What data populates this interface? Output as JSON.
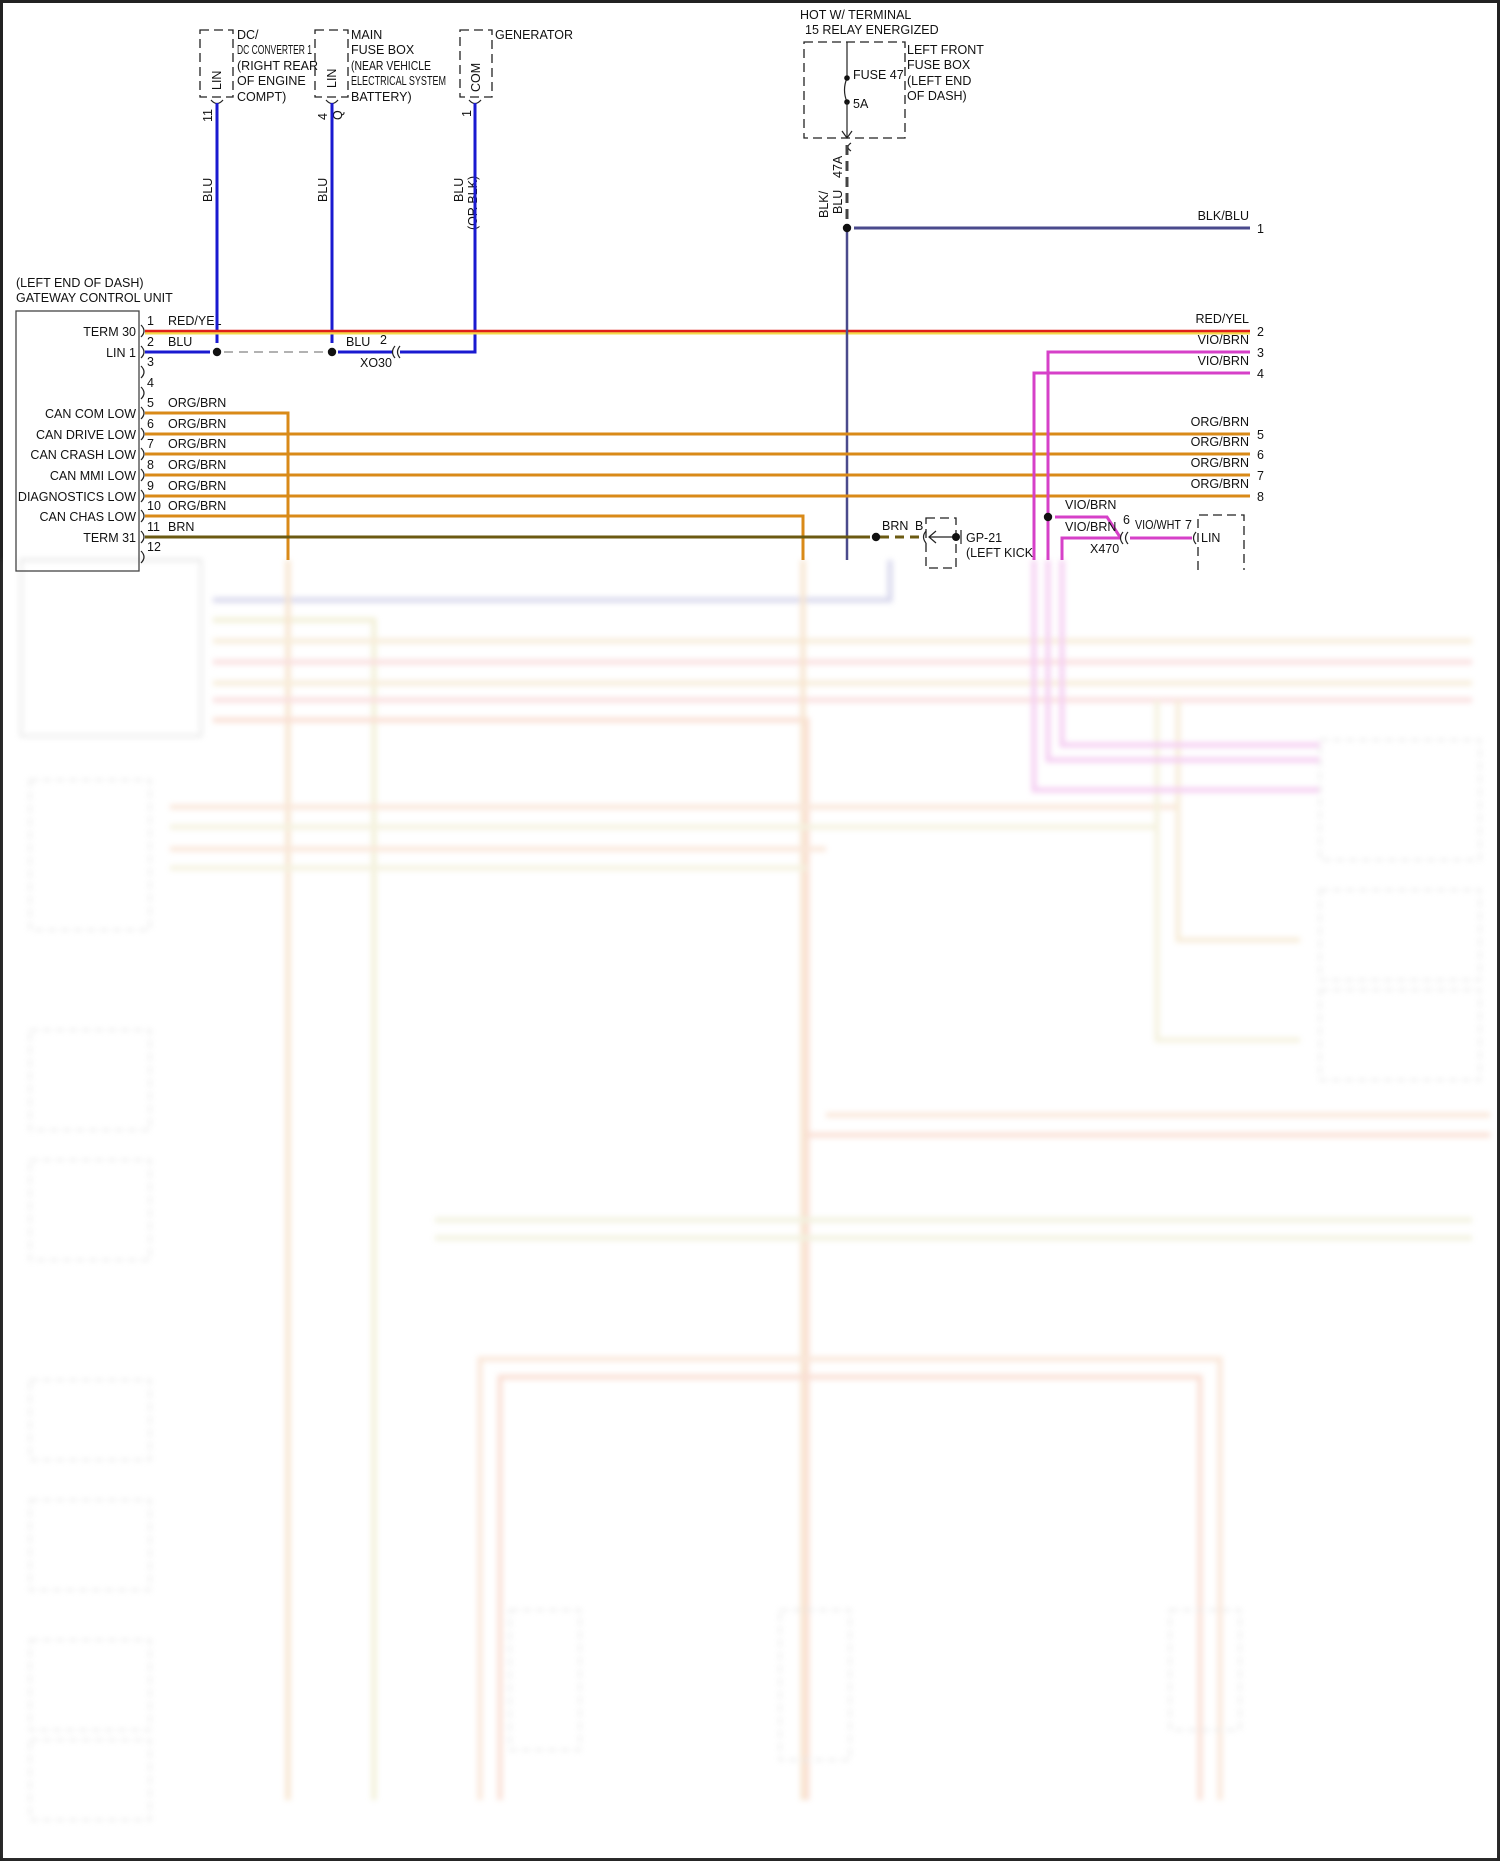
{
  "colors": {
    "red_yel": "#e0201a",
    "blu": "#1a1ad0",
    "org_brn": "#d98a18",
    "brn": "#6b5a12",
    "vio_brn": "#d640c8",
    "blk_blu": "#4a4a8c"
  },
  "components": {
    "dcdc": {
      "lines": [
        "DC/",
        "DC CONVERTER 1",
        "(RIGHT REAR",
        "OF ENGINE",
        "COMPT)"
      ],
      "pin_name": "LIN",
      "pin": "11",
      "wire": "BLU"
    },
    "main_fuse": {
      "lines": [
        "MAIN",
        "FUSE BOX",
        "(NEAR VEHICLE",
        "ELECTRICAL SYSTEM",
        "BATTERY)"
      ],
      "pin_name": "LIN",
      "pin": "4",
      "pin_letter": "Q",
      "wire": "BLU"
    },
    "generator": {
      "lines": [
        "GENERATOR"
      ],
      "pin_name": "COM",
      "pin": "1",
      "wire": [
        "BLU",
        "(OR BLK)"
      ]
    },
    "hot": {
      "lines": [
        "HOT W/ TERMINAL",
        "15 RELAY ENERGIZED"
      ]
    },
    "lf_fuse": {
      "lines": [
        "LEFT FRONT",
        "FUSE BOX",
        "(LEFT END",
        "OF DASH)"
      ],
      "fuse": "FUSE 47",
      "rating": "5A",
      "connector": "47A",
      "wire": [
        "BLK/",
        "BLU"
      ]
    },
    "gateway": {
      "lines": [
        "(LEFT END OF DASH)",
        "GATEWAY CONTROL UNIT"
      ]
    },
    "gp21": {
      "lines": [
        "GP-21",
        "(LEFT KICK"
      ],
      "wire": "BRN",
      "pin": "B"
    },
    "x470": {
      "name": "X470",
      "pin_in": "6",
      "pin_out": "7",
      "wire_in": [
        "VIO/BRN",
        "VIO/BRN"
      ],
      "wire_out": "VIO/WHT",
      "pin_name": "LIN"
    },
    "xo30": {
      "name": "XO30",
      "pin": "2",
      "wire": "BLU"
    }
  },
  "gateway_pins": [
    {
      "num": "1",
      "name": "TERM 30",
      "wire": "RED/YEL"
    },
    {
      "num": "2",
      "name": "LIN 1",
      "wire": "BLU"
    },
    {
      "num": "3",
      "name": "",
      "wire": ""
    },
    {
      "num": "4",
      "name": "",
      "wire": ""
    },
    {
      "num": "5",
      "name": "CAN COM LOW",
      "wire": "ORG/BRN"
    },
    {
      "num": "6",
      "name": "CAN DRIVE LOW",
      "wire": "ORG/BRN"
    },
    {
      "num": "7",
      "name": "CAN CRASH LOW",
      "wire": "ORG/BRN"
    },
    {
      "num": "8",
      "name": "CAN MMI LOW",
      "wire": "ORG/BRN"
    },
    {
      "num": "9",
      "name": "DIAGNOSTICS LOW",
      "wire": "ORG/BRN"
    },
    {
      "num": "10",
      "name": "CAN CHAS LOW",
      "wire": "ORG/BRN"
    },
    {
      "num": "11",
      "name": "TERM 31",
      "wire": "BRN"
    },
    {
      "num": "12",
      "name": "",
      "wire": ""
    }
  ],
  "right_pins": [
    {
      "num": "1",
      "wire": "BLK/BLU"
    },
    {
      "num": "2",
      "wire": "RED/YEL"
    },
    {
      "num": "3",
      "wire": "VIO/BRN"
    },
    {
      "num": "4",
      "wire": "VIO/BRN"
    },
    {
      "num": "5",
      "wire": "ORG/BRN"
    },
    {
      "num": "6",
      "wire": "ORG/BRN"
    },
    {
      "num": "7",
      "wire": "ORG/BRN"
    },
    {
      "num": "8",
      "wire": "ORG/BRN"
    }
  ],
  "vio_junction_label": "VIO/BRN"
}
